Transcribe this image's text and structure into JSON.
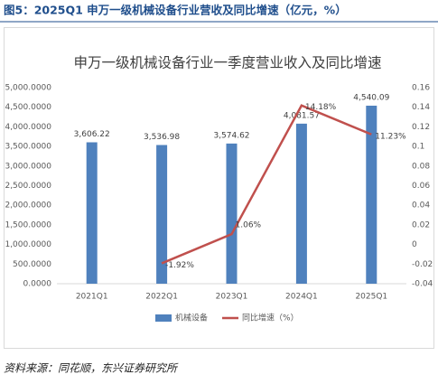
{
  "caption": "图5：2025Q1 申万一级机械设备行业营收及同比增速（亿元，%）",
  "source": "资料来源：同花顺，东兴证券研究所",
  "chart_data": {
    "type": "combo",
    "title": "申万一级机械设备行业一季度营业收入及同比增速",
    "categories": [
      "2021Q1",
      "2022Q1",
      "2023Q1",
      "2024Q1",
      "2025Q1"
    ],
    "series": [
      {
        "name": "机械设备",
        "type": "bar",
        "color": "#4f81bd",
        "values": [
          3606.22,
          3536.98,
          3574.62,
          4081.57,
          4540.09
        ],
        "value_labels": [
          "3,606.22",
          "3,536.98",
          "3,574.62",
          "4,081.57",
          "4,540.09"
        ]
      },
      {
        "name": "同比增速（%）",
        "type": "line",
        "axis": "y2",
        "color": "#c0504d",
        "values": [
          null,
          -0.0192,
          0.0106,
          0.1418,
          0.1123
        ],
        "value_labels": [
          null,
          "-1.92%",
          "1.06%",
          "14.18%",
          "11.23%"
        ]
      }
    ],
    "ylim": [
      0,
      5000
    ],
    "yticks": [
      {
        "value": 0,
        "label": "0.0000"
      },
      {
        "value": 500,
        "label": "500.0000"
      },
      {
        "value": 1000,
        "label": "1,000.0000"
      },
      {
        "value": 1500,
        "label": "1,500.0000"
      },
      {
        "value": 2000,
        "label": "2,000.0000"
      },
      {
        "value": 2500,
        "label": "2,500.0000"
      },
      {
        "value": 3000,
        "label": "3,000.0000"
      },
      {
        "value": 3500,
        "label": "3,500.0000"
      },
      {
        "value": 4000,
        "label": "4,000.0000"
      },
      {
        "value": 4500,
        "label": "4,500.0000"
      },
      {
        "value": 5000,
        "label": "5,000.0000"
      }
    ],
    "y2lim": [
      -0.04,
      0.16
    ],
    "y2ticks": [
      -0.04,
      -0.02,
      0,
      0.02,
      0.04,
      0.06,
      0.08,
      0.1,
      0.12,
      0.14,
      0.16
    ],
    "grid": false,
    "legend": "bottom"
  }
}
